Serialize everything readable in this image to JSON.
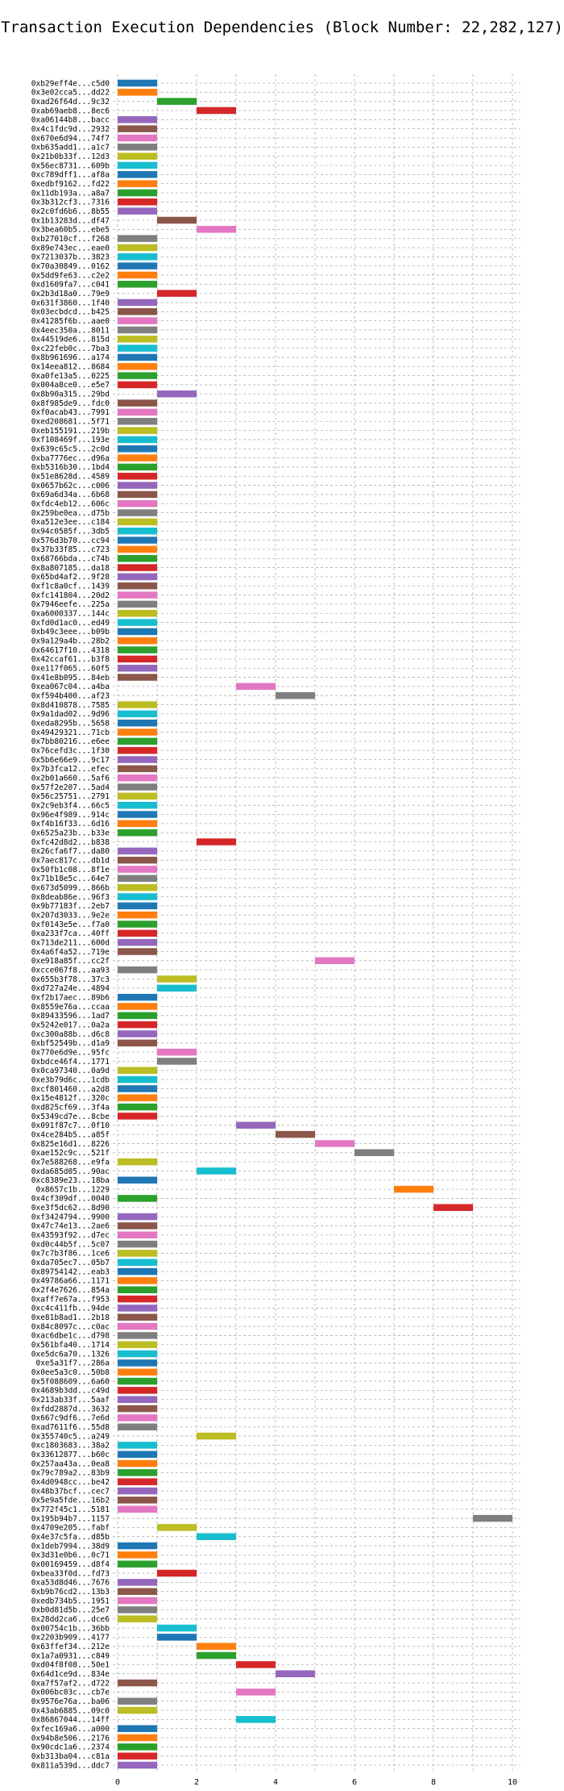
{
  "chart_data": {
    "type": "bar",
    "orientation": "horizontal",
    "title": "Transaction Execution Dependencies (Block Number: 22,282,127)",
    "xlabel": "",
    "ylabel": "",
    "xlim": [
      0,
      10
    ],
    "xticks": [
      0,
      2,
      4,
      6,
      8,
      10
    ],
    "grid": true,
    "legend": "none",
    "palette": [
      "#1f77b4",
      "#ff7f0e",
      "#2ca02c",
      "#d62728",
      "#9467bd",
      "#8c564b",
      "#e377c2",
      "#7f7f7f",
      "#bcbd22",
      "#17becf"
    ],
    "transactions": [
      {
        "hash": "0xb29eff4e...c5d0",
        "start": 0,
        "end": 1
      },
      {
        "hash": "0x3e02cca5...dd22",
        "start": 0,
        "end": 1
      },
      {
        "hash": "0xad26f64d...9c32",
        "start": 1,
        "end": 2
      },
      {
        "hash": "0xab69aeb8...8ec6",
        "start": 2,
        "end": 3
      },
      {
        "hash": "0xa06144b8...bacc",
        "start": 0,
        "end": 1
      },
      {
        "hash": "0x4c1fdc9d...2932",
        "start": 0,
        "end": 1
      },
      {
        "hash": "0x670e6d94...74f7",
        "start": 0,
        "end": 1
      },
      {
        "hash": "0xb635add1...a1c7",
        "start": 0,
        "end": 1
      },
      {
        "hash": "0x21b0b33f...12d3",
        "start": 0,
        "end": 1
      },
      {
        "hash": "0x56ec8731...609b",
        "start": 0,
        "end": 1
      },
      {
        "hash": "0xc789dff1...af8a",
        "start": 0,
        "end": 1
      },
      {
        "hash": "0xedbf9162...fd22",
        "start": 0,
        "end": 1
      },
      {
        "hash": "0x11db193a...a8a7",
        "start": 0,
        "end": 1
      },
      {
        "hash": "0x3b312cf3...7316",
        "start": 0,
        "end": 1
      },
      {
        "hash": "0x2c0fd6b6...8b55",
        "start": 0,
        "end": 1
      },
      {
        "hash": "0x1b13283d...df47",
        "start": 1,
        "end": 2
      },
      {
        "hash": "0x3bea60b5...ebe5",
        "start": 2,
        "end": 3
      },
      {
        "hash": "0xb27010cf...f268",
        "start": 0,
        "end": 1
      },
      {
        "hash": "0x89e743ec...eae0",
        "start": 0,
        "end": 1
      },
      {
        "hash": "0x7213037b...3823",
        "start": 0,
        "end": 1
      },
      {
        "hash": "0x70a30849...0162",
        "start": 0,
        "end": 1
      },
      {
        "hash": "0x5dd9fe63...c2e2",
        "start": 0,
        "end": 1
      },
      {
        "hash": "0xd1609fa7...c041",
        "start": 0,
        "end": 1
      },
      {
        "hash": "0x2b3d18a0...79e9",
        "start": 1,
        "end": 2
      },
      {
        "hash": "0x631f3860...1f40",
        "start": 0,
        "end": 1
      },
      {
        "hash": "0x03ecbdcd...b425",
        "start": 0,
        "end": 1
      },
      {
        "hash": "0x41285f6b...aae0",
        "start": 0,
        "end": 1
      },
      {
        "hash": "0x4eec350a...8011",
        "start": 0,
        "end": 1
      },
      {
        "hash": "0x44519de6...815d",
        "start": 0,
        "end": 1
      },
      {
        "hash": "0xc22feb0c...7ba3",
        "start": 0,
        "end": 1
      },
      {
        "hash": "0x8b961696...a174",
        "start": 0,
        "end": 1
      },
      {
        "hash": "0x14eea812...8684",
        "start": 0,
        "end": 1
      },
      {
        "hash": "0xa0fe13a5...0225",
        "start": 0,
        "end": 1
      },
      {
        "hash": "0x004a8ce0...e5e7",
        "start": 0,
        "end": 1
      },
      {
        "hash": "0x8b90a315...29bd",
        "start": 1,
        "end": 2
      },
      {
        "hash": "0x8f985de9...fdc0",
        "start": 0,
        "end": 1
      },
      {
        "hash": "0xf0acab43...7991",
        "start": 0,
        "end": 1
      },
      {
        "hash": "0xed208681...5f71",
        "start": 0,
        "end": 1
      },
      {
        "hash": "0xeb155191...219b",
        "start": 0,
        "end": 1
      },
      {
        "hash": "0xf108469f...193e",
        "start": 0,
        "end": 1
      },
      {
        "hash": "0x639c65c5...2c0d",
        "start": 0,
        "end": 1
      },
      {
        "hash": "0xba7776ec...d96a",
        "start": 0,
        "end": 1
      },
      {
        "hash": "0xb5316b30...1bd4",
        "start": 0,
        "end": 1
      },
      {
        "hash": "0x51e8628d...4589",
        "start": 0,
        "end": 1
      },
      {
        "hash": "0x0657b62c...c006",
        "start": 0,
        "end": 1
      },
      {
        "hash": "0x69a6d34a...6b68",
        "start": 0,
        "end": 1
      },
      {
        "hash": "0xfdc4eb12...606c",
        "start": 0,
        "end": 1
      },
      {
        "hash": "0x259be0ea...d75b",
        "start": 0,
        "end": 1
      },
      {
        "hash": "0xa512e3ee...c184",
        "start": 0,
        "end": 1
      },
      {
        "hash": "0x94c0585f...3db5",
        "start": 0,
        "end": 1
      },
      {
        "hash": "0x576d3b70...cc94",
        "start": 0,
        "end": 1
      },
      {
        "hash": "0x37b33f85...c723",
        "start": 0,
        "end": 1
      },
      {
        "hash": "0x68766bda...c74b",
        "start": 0,
        "end": 1
      },
      {
        "hash": "0x8a807185...da18",
        "start": 0,
        "end": 1
      },
      {
        "hash": "0x65bd4af2...9f28",
        "start": 0,
        "end": 1
      },
      {
        "hash": "0xf1c8a0cf...1439",
        "start": 0,
        "end": 1
      },
      {
        "hash": "0xfc141804...20d2",
        "start": 0,
        "end": 1
      },
      {
        "hash": "0x7946eefe...225a",
        "start": 0,
        "end": 1
      },
      {
        "hash": "0xa6000337...144c",
        "start": 0,
        "end": 1
      },
      {
        "hash": "0xfd0d1ac0...ed49",
        "start": 0,
        "end": 1
      },
      {
        "hash": "0xb49c3eee...b09b",
        "start": 0,
        "end": 1
      },
      {
        "hash": "0x9a129a4b...28b2",
        "start": 0,
        "end": 1
      },
      {
        "hash": "0x64617f10...4318",
        "start": 0,
        "end": 1
      },
      {
        "hash": "0x42ccaf61...b3f8",
        "start": 0,
        "end": 1
      },
      {
        "hash": "0xe117f065...60f5",
        "start": 0,
        "end": 1
      },
      {
        "hash": "0x41e8b095...84eb",
        "start": 0,
        "end": 1
      },
      {
        "hash": "0xea067c04...a4ba",
        "start": 3,
        "end": 4
      },
      {
        "hash": "0xf594b400...af23",
        "start": 4,
        "end": 5
      },
      {
        "hash": "0x8d410878...7585",
        "start": 0,
        "end": 1
      },
      {
        "hash": "0x9a1dad02...9d96",
        "start": 0,
        "end": 1
      },
      {
        "hash": "0xeda8295b...5658",
        "start": 0,
        "end": 1
      },
      {
        "hash": "0x49429321...71cb",
        "start": 0,
        "end": 1
      },
      {
        "hash": "0x7bb80216...e6ee",
        "start": 0,
        "end": 1
      },
      {
        "hash": "0x76cefd3c...1f30",
        "start": 0,
        "end": 1
      },
      {
        "hash": "0x5b6e66e9...9c17",
        "start": 0,
        "end": 1
      },
      {
        "hash": "0x7b3fca12...efec",
        "start": 0,
        "end": 1
      },
      {
        "hash": "0x2b01a660...5af6",
        "start": 0,
        "end": 1
      },
      {
        "hash": "0x57f2e207...5ad4",
        "start": 0,
        "end": 1
      },
      {
        "hash": "0x56c25751...2791",
        "start": 0,
        "end": 1
      },
      {
        "hash": "0x2c9eb3f4...66c5",
        "start": 0,
        "end": 1
      },
      {
        "hash": "0x96e4f989...914c",
        "start": 0,
        "end": 1
      },
      {
        "hash": "0xf4b16f33...6d16",
        "start": 0,
        "end": 1
      },
      {
        "hash": "0x6525a23b...b33e",
        "start": 0,
        "end": 1
      },
      {
        "hash": "0xfc42d8d2...b838",
        "start": 2,
        "end": 3
      },
      {
        "hash": "0x26cfa6f7...da80",
        "start": 0,
        "end": 1
      },
      {
        "hash": "0x7aec817c...db1d",
        "start": 0,
        "end": 1
      },
      {
        "hash": "0x50fb1c08...8f1e",
        "start": 0,
        "end": 1
      },
      {
        "hash": "0x71b18e5c...64e7",
        "start": 0,
        "end": 1
      },
      {
        "hash": "0x673d5099...866b",
        "start": 0,
        "end": 1
      },
      {
        "hash": "0x8deab86e...96f3",
        "start": 0,
        "end": 1
      },
      {
        "hash": "0x9b77183f...2eb7",
        "start": 0,
        "end": 1
      },
      {
        "hash": "0x207d3033...9e2e",
        "start": 0,
        "end": 1
      },
      {
        "hash": "0xf0143e5e...f7a0",
        "start": 0,
        "end": 1
      },
      {
        "hash": "0xa233f7ca...40ff",
        "start": 0,
        "end": 1
      },
      {
        "hash": "0x713de211...600d",
        "start": 0,
        "end": 1
      },
      {
        "hash": "0x4a6f4a52...719e",
        "start": 0,
        "end": 1
      },
      {
        "hash": "0xe918a85f...cc2f",
        "start": 5,
        "end": 6
      },
      {
        "hash": "0xcce067f8...aa93",
        "start": 0,
        "end": 1
      },
      {
        "hash": "0x655b3f78...37c3",
        "start": 1,
        "end": 2
      },
      {
        "hash": "0xd727a24e...4894",
        "start": 1,
        "end": 2
      },
      {
        "hash": "0xf2b17aec...89b6",
        "start": 0,
        "end": 1
      },
      {
        "hash": "0x8559e76a...ccaa",
        "start": 0,
        "end": 1
      },
      {
        "hash": "0x89433596...1ad7",
        "start": 0,
        "end": 1
      },
      {
        "hash": "0x5242e017...0a2a",
        "start": 0,
        "end": 1
      },
      {
        "hash": "0xc300a88b...d6c8",
        "start": 0,
        "end": 1
      },
      {
        "hash": "0xbf52549b...d1a9",
        "start": 0,
        "end": 1
      },
      {
        "hash": "0x770e6d9e...95fc",
        "start": 1,
        "end": 2
      },
      {
        "hash": "0xbdce46f4...1771",
        "start": 1,
        "end": 2
      },
      {
        "hash": "0x0ca97340...0a9d",
        "start": 0,
        "end": 1
      },
      {
        "hash": "0xe3b79d6c...1cdb",
        "start": 0,
        "end": 1
      },
      {
        "hash": "0xcf801460...a2d8",
        "start": 0,
        "end": 1
      },
      {
        "hash": "0x15e4812f...320c",
        "start": 0,
        "end": 1
      },
      {
        "hash": "0xd825cf69...3f4a",
        "start": 0,
        "end": 1
      },
      {
        "hash": "0x5349cd7e...8cbe",
        "start": 0,
        "end": 1
      },
      {
        "hash": "0x091f87c7...0f10",
        "start": 3,
        "end": 4
      },
      {
        "hash": "0x4ce284b5...a85f",
        "start": 4,
        "end": 5
      },
      {
        "hash": "0x825e16d1...8226",
        "start": 5,
        "end": 6
      },
      {
        "hash": "0xae152c9c...521f",
        "start": 6,
        "end": 7
      },
      {
        "hash": "0x7e588268...e9fa",
        "start": 0,
        "end": 1
      },
      {
        "hash": "0xda685d05...90ac",
        "start": 2,
        "end": 3
      },
      {
        "hash": "0xc8389e23...18ba",
        "start": 0,
        "end": 1
      },
      {
        "hash": "0x8657c1b...1229",
        "start": 7,
        "end": 8
      },
      {
        "hash": "0x4cf309df...0040",
        "start": 0,
        "end": 1
      },
      {
        "hash": "0xe3f5dc62...8d90",
        "start": 8,
        "end": 9
      },
      {
        "hash": "0xf3424794...9900",
        "start": 0,
        "end": 1
      },
      {
        "hash": "0x47c74e13...2ae6",
        "start": 0,
        "end": 1
      },
      {
        "hash": "0x43593f92...d7ec",
        "start": 0,
        "end": 1
      },
      {
        "hash": "0xd0c44b5f...5c07",
        "start": 0,
        "end": 1
      },
      {
        "hash": "0x7c7b3f86...1ce6",
        "start": 0,
        "end": 1
      },
      {
        "hash": "0xda705ec7...05b7",
        "start": 0,
        "end": 1
      },
      {
        "hash": "0x89754142...eab3",
        "start": 0,
        "end": 1
      },
      {
        "hash": "0x49786a66...1171",
        "start": 0,
        "end": 1
      },
      {
        "hash": "0x2f4e7626...854a",
        "start": 0,
        "end": 1
      },
      {
        "hash": "0xaff7e67a...f953",
        "start": 0,
        "end": 1
      },
      {
        "hash": "0xc4c411fb...94de",
        "start": 0,
        "end": 1
      },
      {
        "hash": "0xe81b8ad1...2b18",
        "start": 0,
        "end": 1
      },
      {
        "hash": "0x84c8097c...c0ac",
        "start": 0,
        "end": 1
      },
      {
        "hash": "0xac6dbe1c...d798",
        "start": 0,
        "end": 1
      },
      {
        "hash": "0x561bfa40...1714",
        "start": 0,
        "end": 1
      },
      {
        "hash": "0xe5dc6a70...1326",
        "start": 0,
        "end": 1
      },
      {
        "hash": "0xe5a31f7...286a",
        "start": 0,
        "end": 1
      },
      {
        "hash": "0x0ee5a3c0...50b8",
        "start": 0,
        "end": 1
      },
      {
        "hash": "0x5f088609...6a60",
        "start": 0,
        "end": 1
      },
      {
        "hash": "0x4689b3dd...c49d",
        "start": 0,
        "end": 1
      },
      {
        "hash": "0x213ab33f...5aaf",
        "start": 0,
        "end": 1
      },
      {
        "hash": "0xfdd2887d...3632",
        "start": 0,
        "end": 1
      },
      {
        "hash": "0x667c9df6...7e6d",
        "start": 0,
        "end": 1
      },
      {
        "hash": "0xad7611f6...55d8",
        "start": 0,
        "end": 1
      },
      {
        "hash": "0x355740c5...a249",
        "start": 2,
        "end": 3
      },
      {
        "hash": "0xc1803683...38a2",
        "start": 0,
        "end": 1
      },
      {
        "hash": "0x33612877...b60c",
        "start": 0,
        "end": 1
      },
      {
        "hash": "0x257aa43a...0ea8",
        "start": 0,
        "end": 1
      },
      {
        "hash": "0x79c789a2...83b9",
        "start": 0,
        "end": 1
      },
      {
        "hash": "0x4d0948cc...be42",
        "start": 0,
        "end": 1
      },
      {
        "hash": "0x48b37bcf...cec7",
        "start": 0,
        "end": 1
      },
      {
        "hash": "0x5e9a5fde...16b2",
        "start": 0,
        "end": 1
      },
      {
        "hash": "0x772f45c1...5181",
        "start": 0,
        "end": 1
      },
      {
        "hash": "0x195b94b7...1157",
        "start": 9,
        "end": 10
      },
      {
        "hash": "0x4709e205...fabf",
        "start": 1,
        "end": 2
      },
      {
        "hash": "0x4e37c5fa...d85b",
        "start": 2,
        "end": 3
      },
      {
        "hash": "0x1deb7994...38d9",
        "start": 0,
        "end": 1
      },
      {
        "hash": "0x3d31e0b6...0c71",
        "start": 0,
        "end": 1
      },
      {
        "hash": "0x00169459...d8f4",
        "start": 0,
        "end": 1
      },
      {
        "hash": "0xbea33f0d...fd73",
        "start": 1,
        "end": 2
      },
      {
        "hash": "0xa53d8d46...7676",
        "start": 0,
        "end": 1
      },
      {
        "hash": "0xb9b76cd2...13b3",
        "start": 0,
        "end": 1
      },
      {
        "hash": "0xedb734b5...1951",
        "start": 0,
        "end": 1
      },
      {
        "hash": "0xb0d81d5b...25e7",
        "start": 0,
        "end": 1
      },
      {
        "hash": "0x28dd2ca6...dce6",
        "start": 0,
        "end": 1
      },
      {
        "hash": "0x00754c1b...36bb",
        "start": 1,
        "end": 2
      },
      {
        "hash": "0x2203b909...4177",
        "start": 1,
        "end": 2
      },
      {
        "hash": "0x63ffef34...212e",
        "start": 2,
        "end": 3
      },
      {
        "hash": "0x1a7a0931...c849",
        "start": 2,
        "end": 3
      },
      {
        "hash": "0xd04f8f08...50e1",
        "start": 3,
        "end": 4
      },
      {
        "hash": "0x64d1ce9d...834e",
        "start": 4,
        "end": 5
      },
      {
        "hash": "0xa7f57af2...d722",
        "start": 0,
        "end": 1
      },
      {
        "hash": "0x006bc03c...cb7e",
        "start": 3,
        "end": 4
      },
      {
        "hash": "0x9576e76a...ba06",
        "start": 0,
        "end": 1
      },
      {
        "hash": "0x43ab6885...09c0",
        "start": 0,
        "end": 1
      },
      {
        "hash": "0x86867044...14ff",
        "start": 3,
        "end": 4
      },
      {
        "hash": "0xfec169a6...a000",
        "start": 0,
        "end": 1
      },
      {
        "hash": "0x94b8e506...2176",
        "start": 0,
        "end": 1
      },
      {
        "hash": "0x90cdc1a6...2374",
        "start": 0,
        "end": 1
      },
      {
        "hash": "0xb313ba04...c81a",
        "start": 0,
        "end": 1
      },
      {
        "hash": "0x811a539d...ddc7",
        "start": 0,
        "end": 1
      }
    ]
  }
}
